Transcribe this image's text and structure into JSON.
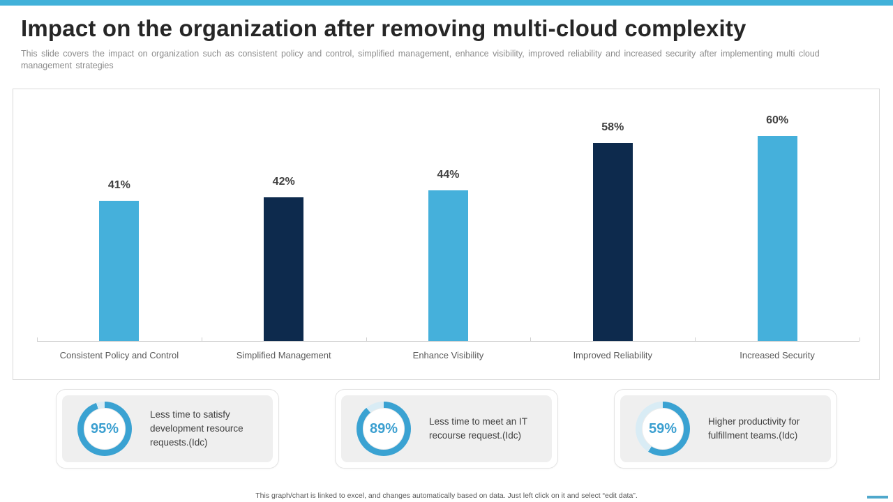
{
  "slide": {
    "title": "Impact on the organization after removing multi-cloud complexity",
    "subtitle": "This slide covers the impact on organization such as consistent policy and control, simplified management, enhance visibility, improved reliability and increased security after implementing multi cloud management strategies",
    "footer": "This graph/chart is linked to excel, and changes automatically based on data. Just left click on it and select “edit data”."
  },
  "colors": {
    "accent_topbar": "#41B1D9",
    "bar_light_blue": "#45B0DB",
    "bar_navy": "#0D2A4D",
    "donut_blue": "#3AA2D2",
    "donut_track": "#D9ECF5",
    "corner_dash": "#4FA8CC"
  },
  "chart_data": [
    {
      "id": "impact-bar-chart",
      "type": "bar",
      "categories": [
        "Consistent Policy and Control",
        "Simplified Management",
        "Enhance Visibility",
        "Improved Reliability",
        "Increased Security"
      ],
      "values": [
        41,
        42,
        44,
        58,
        60
      ],
      "value_labels": [
        "41%",
        "42%",
        "44%",
        "58%",
        "60%"
      ],
      "bar_colors": [
        "#45B0DB",
        "#0D2A4D",
        "#45B0DB",
        "#0D2A4D",
        "#45B0DB"
      ],
      "title": "",
      "xlabel": "",
      "ylabel": "",
      "ylim": [
        0,
        70
      ],
      "grid": false,
      "legend": "none",
      "data_labels": "above bars, percent"
    },
    {
      "id": "stat-donuts",
      "type": "pie",
      "style": "donut-gauge",
      "items": [
        {
          "percent": 95,
          "label": "95%",
          "text": "Less time to satisfy development resource requests.(Idc)"
        },
        {
          "percent": 89,
          "label": "89%",
          "text": "Less time to meet an IT recourse request.(Idc)"
        },
        {
          "percent": 59,
          "label": "59%",
          "text": "Higher productivity for fulfillment teams.(Idc)"
        }
      ]
    }
  ]
}
